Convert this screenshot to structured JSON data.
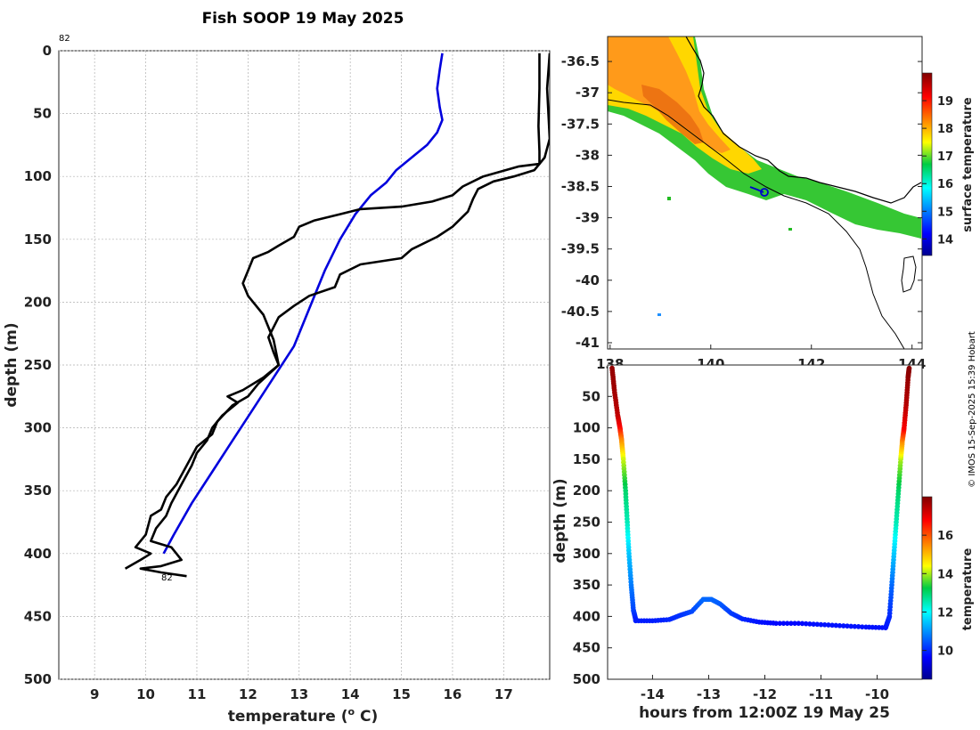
{
  "title": "Fish SOOP 19 May 2025",
  "credit": "© IMOS 15-Sep-2025 15:39 Hobart",
  "chart_data": [
    {
      "type": "line",
      "name": "temperature-profiles",
      "xlabel": "temperature (",
      "xlabel_sup": "o",
      "xlabel_unit": " C)",
      "ylabel": "depth (m)",
      "xlim": [
        8.3,
        17.9
      ],
      "ylim": [
        0,
        500
      ],
      "xticks": [
        "9",
        "10",
        "11",
        "12",
        "13",
        "14",
        "15",
        "16",
        "17"
      ],
      "yticks": [
        "0",
        "50",
        "100",
        "150",
        "200",
        "250",
        "300",
        "350",
        "400",
        "450",
        "500"
      ],
      "top_annotation": "82",
      "bottom_annotation": "82",
      "series": [
        {
          "name": "blue-profile",
          "color": "#0000dd",
          "points": [
            [
              15.8,
              2
            ],
            [
              15.75,
              15
            ],
            [
              15.7,
              30
            ],
            [
              15.75,
              45
            ],
            [
              15.8,
              55
            ],
            [
              15.7,
              65
            ],
            [
              15.5,
              75
            ],
            [
              15.2,
              85
            ],
            [
              14.9,
              95
            ],
            [
              14.7,
              105
            ],
            [
              14.4,
              115
            ],
            [
              14.1,
              130
            ],
            [
              13.8,
              150
            ],
            [
              13.5,
              175
            ],
            [
              13.2,
              205
            ],
            [
              12.9,
              235
            ],
            [
              12.5,
              260
            ],
            [
              12.1,
              285
            ],
            [
              11.7,
              310
            ],
            [
              11.3,
              335
            ],
            [
              10.9,
              360
            ],
            [
              10.55,
              385
            ],
            [
              10.35,
              400
            ]
          ]
        },
        {
          "name": "black-profile-1",
          "color": "#000000",
          "points": [
            [
              17.7,
              2
            ],
            [
              17.7,
              30
            ],
            [
              17.68,
              60
            ],
            [
              17.7,
              80
            ],
            [
              17.7,
              90
            ],
            [
              17.3,
              92
            ],
            [
              16.6,
              100
            ],
            [
              16.2,
              108
            ],
            [
              16.0,
              115
            ],
            [
              15.6,
              120
            ],
            [
              15.0,
              124
            ],
            [
              14.2,
              126
            ],
            [
              13.8,
              130
            ],
            [
              13.3,
              135
            ],
            [
              13.0,
              140
            ],
            [
              12.9,
              148
            ],
            [
              12.6,
              155
            ],
            [
              12.4,
              160
            ],
            [
              12.1,
              165
            ],
            [
              12.0,
              175
            ],
            [
              11.9,
              185
            ],
            [
              12.0,
              195
            ],
            [
              12.3,
              210
            ],
            [
              12.5,
              230
            ],
            [
              12.6,
              250
            ],
            [
              12.3,
              260
            ],
            [
              11.9,
              270
            ],
            [
              11.6,
              275
            ],
            [
              11.8,
              280
            ],
            [
              11.5,
              290
            ],
            [
              11.3,
              300
            ],
            [
              11.2,
              310
            ],
            [
              11.0,
              320
            ],
            [
              10.9,
              330
            ],
            [
              10.7,
              345
            ],
            [
              10.5,
              360
            ],
            [
              10.4,
              370
            ],
            [
              10.2,
              380
            ],
            [
              10.1,
              390
            ],
            [
              10.5,
              395
            ],
            [
              10.7,
              405
            ],
            [
              10.3,
              410
            ],
            [
              9.9,
              412
            ],
            [
              10.3,
              415
            ],
            [
              10.8,
              418
            ]
          ]
        },
        {
          "name": "black-profile-2",
          "color": "#000000",
          "points": [
            [
              17.9,
              2
            ],
            [
              17.85,
              30
            ],
            [
              17.9,
              70
            ],
            [
              17.8,
              85
            ],
            [
              17.6,
              95
            ],
            [
              17.2,
              100
            ],
            [
              16.8,
              104
            ],
            [
              16.5,
              110
            ],
            [
              16.4,
              118
            ],
            [
              16.3,
              128
            ],
            [
              16.0,
              140
            ],
            [
              15.7,
              148
            ],
            [
              15.2,
              158
            ],
            [
              15.0,
              165
            ],
            [
              14.2,
              170
            ],
            [
              13.8,
              178
            ],
            [
              13.7,
              188
            ],
            [
              13.2,
              195
            ],
            [
              12.9,
              203
            ],
            [
              12.6,
              212
            ],
            [
              12.4,
              228
            ],
            [
              12.5,
              240
            ],
            [
              12.6,
              250
            ],
            [
              12.2,
              265
            ],
            [
              12.0,
              275
            ],
            [
              11.7,
              282
            ],
            [
              11.4,
              295
            ],
            [
              11.3,
              305
            ],
            [
              11.0,
              315
            ],
            [
              10.8,
              330
            ],
            [
              10.6,
              345
            ],
            [
              10.4,
              355
            ],
            [
              10.3,
              365
            ],
            [
              10.1,
              370
            ],
            [
              10.0,
              385
            ],
            [
              9.8,
              395
            ],
            [
              10.1,
              400
            ],
            [
              9.9,
              405
            ],
            [
              9.6,
              412
            ]
          ]
        }
      ]
    },
    {
      "type": "heatmap",
      "name": "sst-map",
      "yticks": [
        "-36.5",
        "-37",
        "-37.5",
        "-38",
        "-38.5",
        "-39",
        "-39.5",
        "-40",
        "-40.5",
        "-41"
      ],
      "xticks": [
        "138",
        "140",
        "142",
        "144"
      ],
      "xlim": [
        137.95,
        144.2
      ],
      "ylim": [
        -41.1,
        -36.1
      ],
      "colorbar_label": "surface temperature",
      "colorbar_ticks": [
        "14",
        "15",
        "16",
        "17",
        "18",
        "19"
      ],
      "colorbar_range": [
        13.4,
        20.0
      ]
    },
    {
      "type": "scatter",
      "name": "depth-timeseries",
      "xlabel": "hours from 12:00Z 19 May 25",
      "ylabel": "depth (m)",
      "xlim": [
        -14.8,
        -9.2
      ],
      "ylim": [
        0,
        500
      ],
      "xticks": [
        "-14",
        "-13",
        "-12",
        "-11",
        "-10"
      ],
      "yticks": [
        "50",
        "100",
        "150",
        "200",
        "250",
        "300",
        "350",
        "400",
        "450",
        "500"
      ],
      "colorbar_label": "temperature",
      "colorbar_ticks": [
        "10",
        "12",
        "14",
        "16"
      ],
      "colorbar_range": [
        8.5,
        18.0
      ],
      "descent": [
        [
          -14.72,
          5,
          17.8
        ],
        [
          -14.68,
          40,
          17.7
        ],
        [
          -14.62,
          80,
          17.4
        ],
        [
          -14.58,
          100,
          16.8
        ],
        [
          -14.55,
          120,
          15.5
        ],
        [
          -14.52,
          150,
          14.2
        ],
        [
          -14.48,
          200,
          13.0
        ],
        [
          -14.45,
          250,
          12.5
        ],
        [
          -14.42,
          300,
          11.5
        ],
        [
          -14.38,
          350,
          10.8
        ],
        [
          -14.34,
          390,
          10.3
        ],
        [
          -14.3,
          405,
          9.9
        ]
      ],
      "bottom": [
        [
          -14.3,
          407,
          9.9
        ],
        [
          -14.0,
          407,
          9.9
        ],
        [
          -13.7,
          405,
          10.0
        ],
        [
          -13.5,
          398,
          10.1
        ],
        [
          -13.3,
          392,
          10.3
        ],
        [
          -13.1,
          373,
          10.6
        ],
        [
          -12.95,
          373,
          10.6
        ],
        [
          -12.8,
          380,
          10.5
        ],
        [
          -12.6,
          395,
          10.2
        ],
        [
          -12.4,
          404,
          10.0
        ],
        [
          -12.1,
          409,
          9.8
        ],
        [
          -11.8,
          411,
          9.7
        ],
        [
          -11.4,
          411,
          9.7
        ],
        [
          -11.0,
          413,
          9.8
        ],
        [
          -10.6,
          415,
          9.8
        ],
        [
          -10.2,
          417,
          9.8
        ],
        [
          -9.85,
          418,
          9.8
        ]
      ],
      "ascent": [
        [
          -9.85,
          418,
          9.8
        ],
        [
          -9.78,
          400,
          10.0
        ],
        [
          -9.74,
          350,
          10.6
        ],
        [
          -9.7,
          300,
          11.5
        ],
        [
          -9.66,
          250,
          12.5
        ],
        [
          -9.62,
          200,
          13.0
        ],
        [
          -9.58,
          150,
          14.0
        ],
        [
          -9.55,
          120,
          15.5
        ],
        [
          -9.52,
          100,
          16.8
        ],
        [
          -9.48,
          60,
          17.5
        ],
        [
          -9.45,
          20,
          17.8
        ],
        [
          -9.43,
          5,
          17.9
        ]
      ]
    }
  ]
}
